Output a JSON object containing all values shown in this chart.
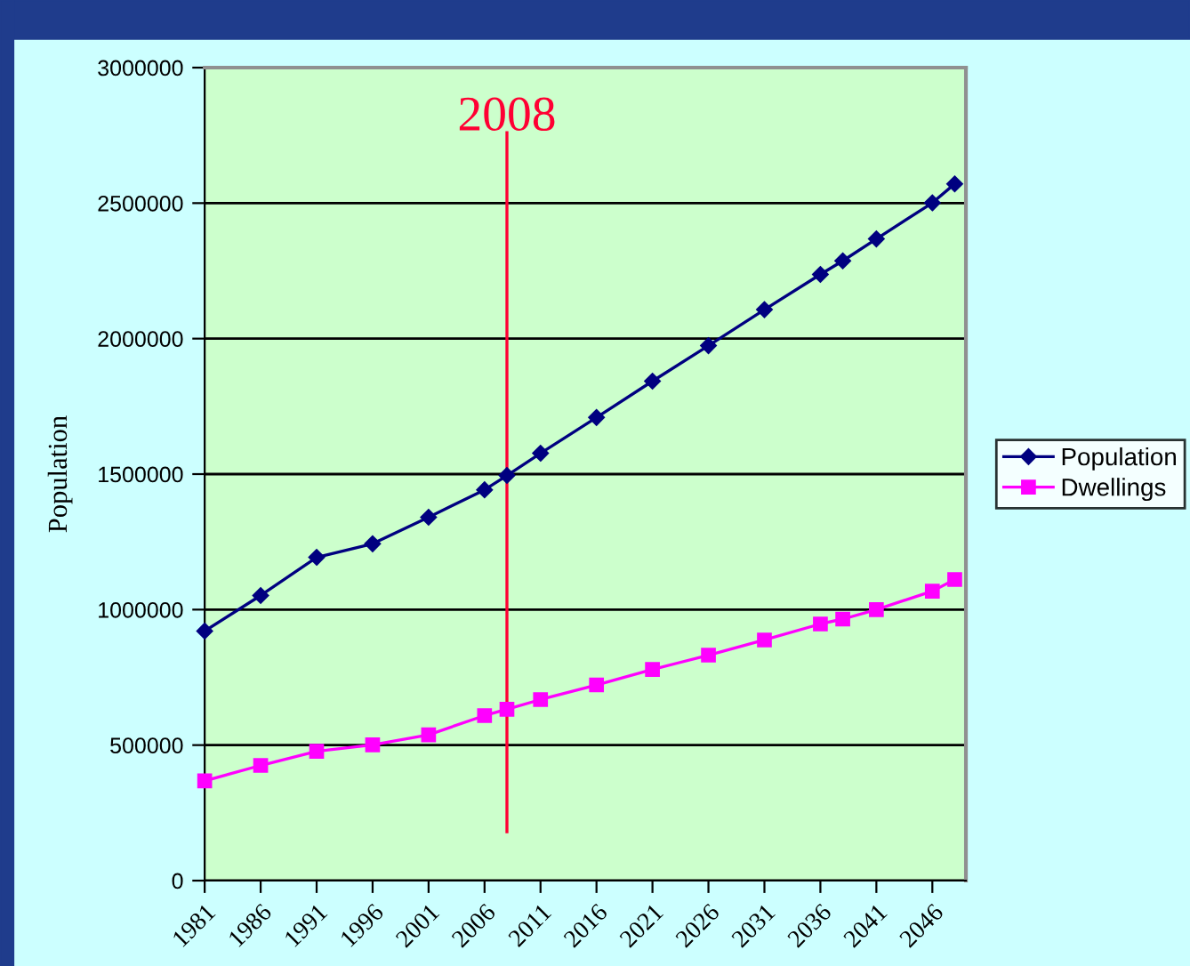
{
  "chart_data": {
    "type": "line",
    "ylabel": "Population",
    "x": [
      1981,
      1986,
      1991,
      1996,
      2001,
      2006,
      2008,
      2011,
      2016,
      2021,
      2026,
      2031,
      2036,
      2038,
      2041,
      2046,
      2048
    ],
    "series": [
      {
        "name": "Population",
        "color": "#000080",
        "marker": "diamond",
        "values": [
          921000,
          1052000,
          1193000,
          1243000,
          1341000,
          1442000,
          1495000,
          1577000,
          1709000,
          1843000,
          1974000,
          2107000,
          2237000,
          2287000,
          2368000,
          2501000,
          2571000
        ]
      },
      {
        "name": "Dwellings",
        "color": "#ff00ff",
        "marker": "square",
        "values": [
          368000,
          425000,
          477000,
          501000,
          538000,
          609000,
          632000,
          668000,
          722000,
          779000,
          832000,
          888000,
          947000,
          965000,
          1000000,
          1068000,
          1111000
        ]
      }
    ],
    "xlim": [
      1981,
      2049
    ],
    "xticks": [
      1981,
      1986,
      1991,
      1996,
      2001,
      2006,
      2011,
      2016,
      2021,
      2026,
      2031,
      2036,
      2041,
      2046
    ],
    "ylim": [
      0,
      3000000
    ],
    "yticks": [
      0,
      500000,
      1000000,
      1500000,
      2000000,
      2500000,
      3000000
    ],
    "ref_lines": [
      {
        "axis": "x",
        "value": 2008,
        "label": "2008",
        "color": "#ff0033"
      }
    ],
    "grid": "y",
    "legend": "right",
    "line_style": "solid"
  }
}
